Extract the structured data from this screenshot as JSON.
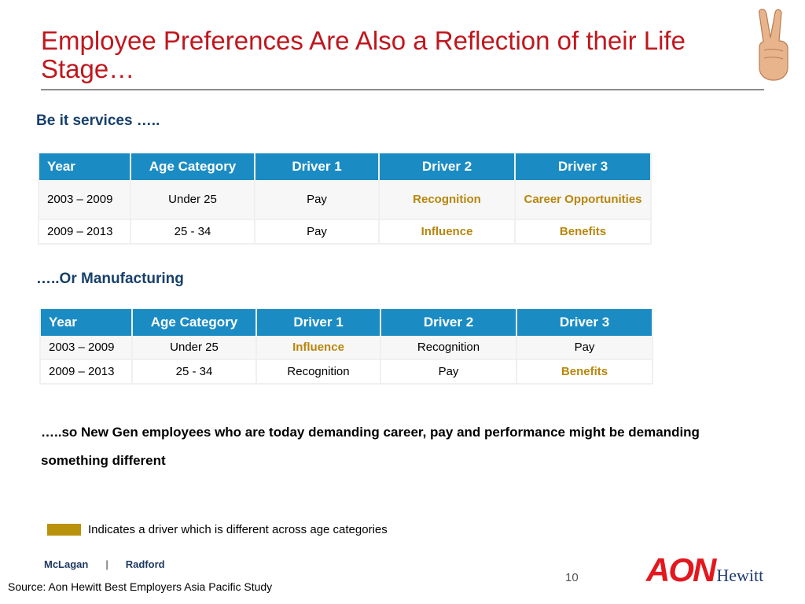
{
  "slide": {
    "title": "Employee Preferences Are Also a Reflection of their Life Stage…",
    "page_number": "10",
    "source": "Source: Aon Hewitt Best Employers Asia Pacific Study"
  },
  "colors": {
    "title": "#c0171e",
    "table_header": "#1b8cc3",
    "highlight": "#b8860b",
    "section_heading": "#17406b"
  },
  "icons": {
    "decorative": "hand-victory-sign-icon"
  },
  "services": {
    "heading": "Be it services …..",
    "columns": [
      "Year",
      "Age Category",
      "Driver 1",
      "Driver 2",
      "Driver 3"
    ],
    "rows": [
      {
        "year": "2003 – 2009",
        "age": "Under 25",
        "driver1": "Pay",
        "driver2": "Recognition",
        "driver3": "Career Opportunities"
      },
      {
        "year": "2009 – 2013",
        "age": "25 - 34",
        "driver1": "Pay",
        "driver2": "Influence",
        "driver3": "Benefits"
      }
    ]
  },
  "manufacturing": {
    "heading": "…..Or Manufacturing",
    "columns": [
      "Year",
      "Age Category",
      "Driver 1",
      "Driver 2",
      "Driver 3"
    ],
    "rows": [
      {
        "year": "2003 – 2009",
        "age": "Under 25",
        "driver1": "Influence",
        "driver2": "Recognition",
        "driver3": "Pay"
      },
      {
        "year": "2009 – 2013",
        "age": "25 - 34",
        "driver1": "Recognition",
        "driver2": "Pay",
        "driver3": "Benefits"
      }
    ]
  },
  "conclusion": "…..so New Gen employees who are today demanding career, pay and performance might be demanding something different",
  "legend": {
    "text": "Indicates a driver which is different across age categories"
  },
  "logos": {
    "mclagan": "McLagan",
    "separator": "|",
    "radford": "Radford",
    "aon": "AON",
    "hewitt": "Hewitt"
  }
}
